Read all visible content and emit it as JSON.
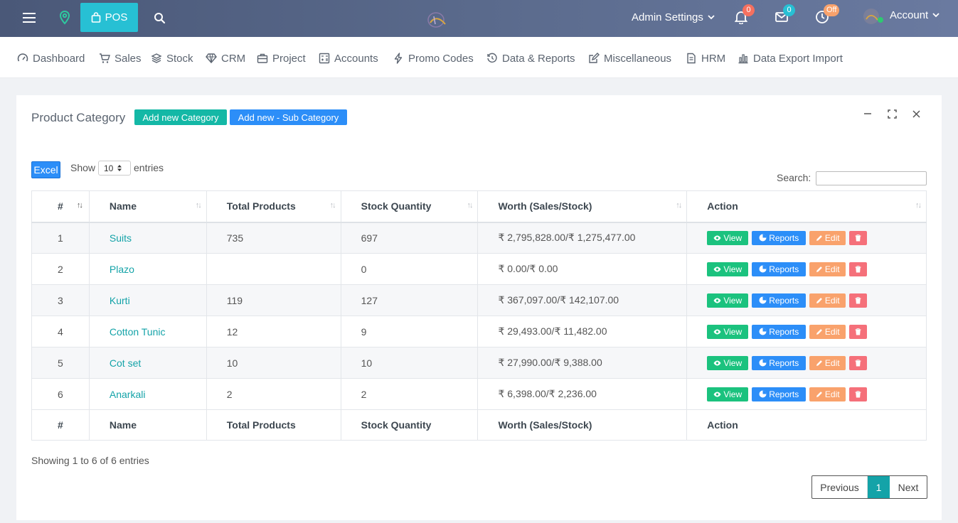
{
  "topbar": {
    "pos_label": "POS",
    "admin_label": "Admin Settings",
    "account_label": "Account",
    "notifications_count": "0",
    "messages_count": "0",
    "clock_status": "Off",
    "icons": [
      "menu-icon",
      "map-pin-icon",
      "shopping-bag-icon",
      "search-icon",
      "bell-icon",
      "mail-icon",
      "clock-icon",
      "chevron-down-icon"
    ]
  },
  "nav": [
    {
      "label": "Dashboard",
      "icon": "gauge-icon"
    },
    {
      "label": "Sales",
      "icon": "cart-icon"
    },
    {
      "label": "Stock",
      "icon": "layers-icon"
    },
    {
      "label": "CRM",
      "icon": "diamond-icon"
    },
    {
      "label": "Project",
      "icon": "briefcase-icon"
    },
    {
      "label": "Accounts",
      "icon": "calculator-icon"
    },
    {
      "label": "Promo Codes",
      "icon": "bolt-icon"
    },
    {
      "label": "Data & Reports",
      "icon": "history-icon"
    },
    {
      "label": "Miscellaneous",
      "icon": "edit-icon"
    },
    {
      "label": "HRM",
      "icon": "file-icon"
    },
    {
      "label": "Data Export Import",
      "icon": "bar-chart-icon"
    }
  ],
  "card": {
    "title": "Product Category",
    "add_category_label": "Add new Category",
    "add_subcategory_label": "Add new - Sub Category",
    "excel_label": "Excel",
    "show_label": "Show",
    "page_size": "10",
    "entries_label": "entries",
    "search_label": "Search:",
    "search_value": ""
  },
  "table": {
    "headers": [
      "#",
      "Name",
      "Total Products",
      "Stock Quantity",
      "Worth (Sales/Stock)",
      "Action"
    ],
    "rows": [
      {
        "num": "1",
        "name": "Suits",
        "total": "735",
        "stock": "697",
        "worth": "₹ 2,795,828.00/₹ 1,275,477.00"
      },
      {
        "num": "2",
        "name": "Plazo",
        "total": "",
        "stock": "0",
        "worth": "₹ 0.00/₹ 0.00"
      },
      {
        "num": "3",
        "name": "Kurti",
        "total": "119",
        "stock": "127",
        "worth": "₹ 367,097.00/₹ 142,107.00"
      },
      {
        "num": "4",
        "name": "Cotton Tunic",
        "total": "12",
        "stock": "9",
        "worth": "₹ 29,493.00/₹ 11,482.00"
      },
      {
        "num": "5",
        "name": "Cot set",
        "total": "10",
        "stock": "10",
        "worth": "₹ 27,990.00/₹ 9,388.00"
      },
      {
        "num": "6",
        "name": "Anarkali",
        "total": "2",
        "stock": "2",
        "worth": "₹ 6,398.00/₹ 2,236.00"
      }
    ],
    "actions": {
      "view": "View",
      "reports": "Reports",
      "edit": "Edit"
    }
  },
  "footer": {
    "info": "Showing 1 to 6 of 6 entries",
    "previous": "Previous",
    "current_page": "1",
    "next": "Next"
  },
  "colors": {
    "accent_teal": "#14a3a8",
    "pos_cyan": "#27c0d4",
    "primary_blue": "#2c8ef8",
    "view_green": "#1bc27e",
    "edit_orange": "#f9a26c",
    "delete_red": "#f5707a"
  }
}
